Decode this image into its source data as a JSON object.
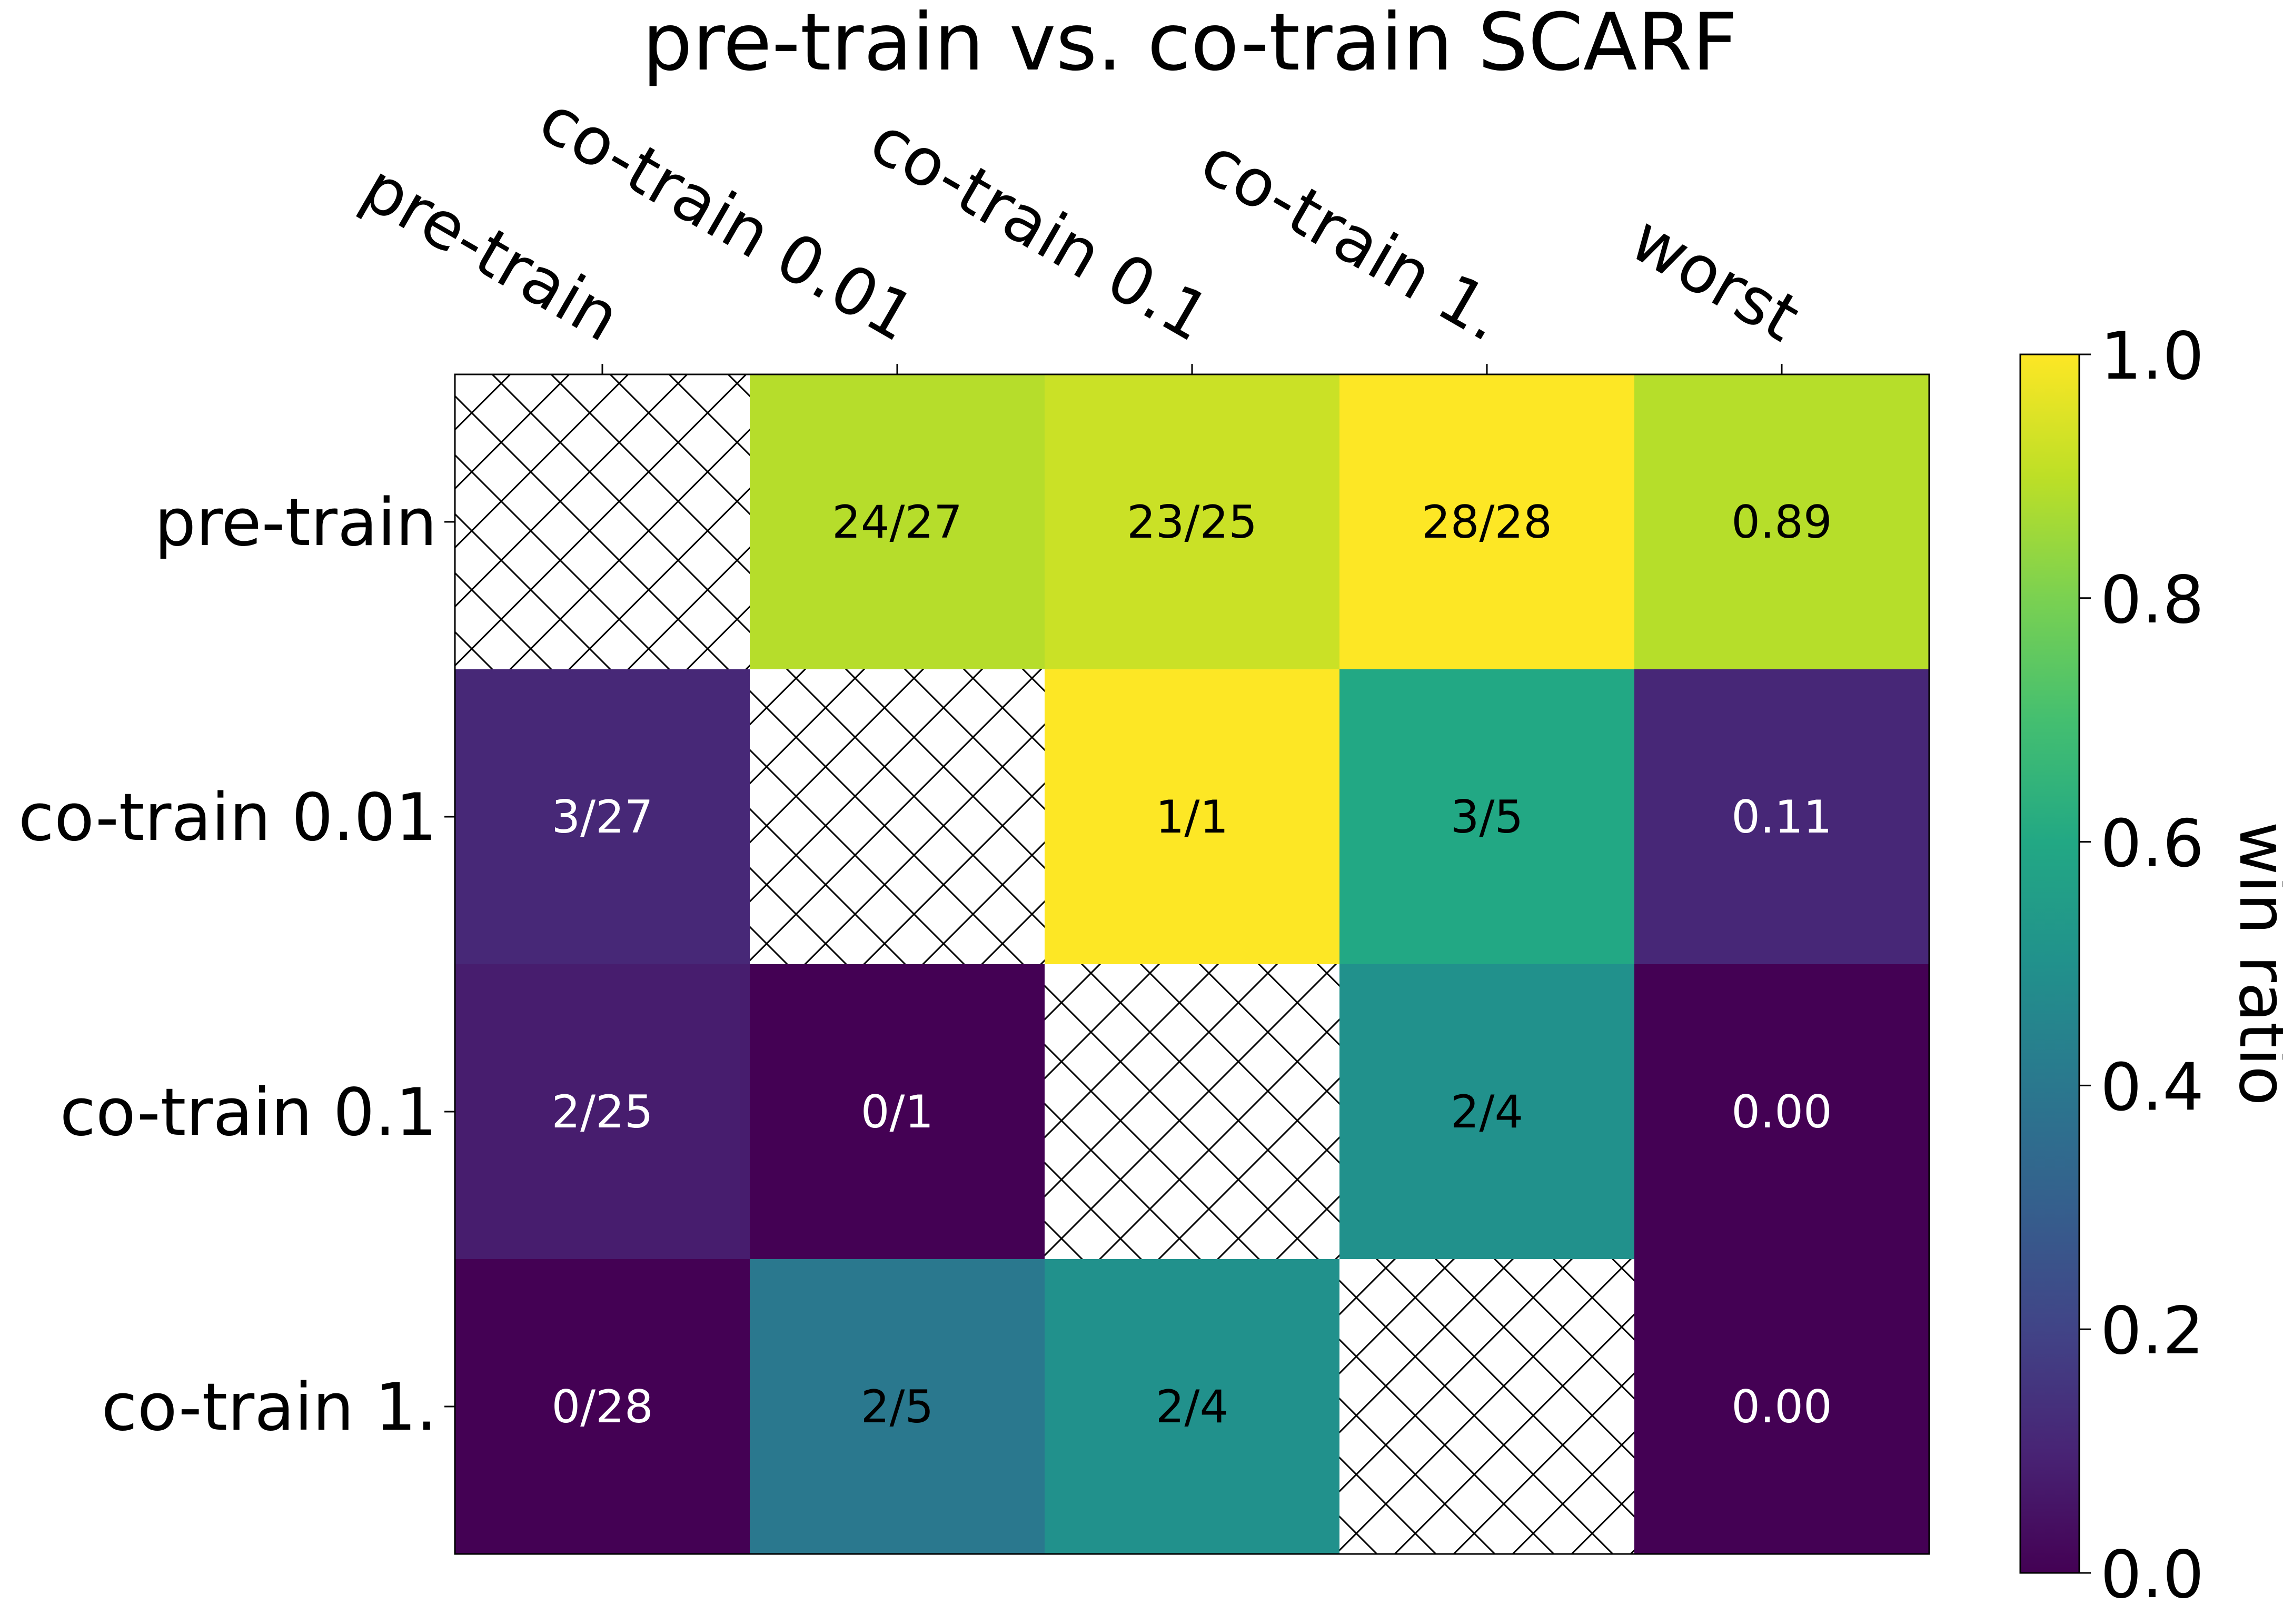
{
  "chart_data": {
    "type": "heatmap",
    "title": "pre-train vs. co-train SCARF",
    "columns": [
      "pre-train",
      "co-train 0.01",
      "co-train 0.1",
      "co-train 1.",
      "worst"
    ],
    "rows": [
      "pre-train",
      "co-train 0.01",
      "co-train 0.1",
      "co-train 1."
    ],
    "values": [
      [
        null,
        0.889,
        0.92,
        1.0,
        0.89
      ],
      [
        0.111,
        null,
        1.0,
        0.6,
        0.11
      ],
      [
        0.08,
        0.0,
        null,
        0.5,
        0.0
      ],
      [
        0.0,
        0.4,
        0.5,
        null,
        0.0
      ]
    ],
    "labels": [
      [
        "",
        "24/27",
        "23/25",
        "28/28",
        "0.89"
      ],
      [
        "3/27",
        "",
        "1/1",
        "3/5",
        "0.11"
      ],
      [
        "2/25",
        "0/1",
        "",
        "2/4",
        "0.00"
      ],
      [
        "0/28",
        "2/5",
        "2/4",
        "",
        "0.00"
      ]
    ],
    "diagonal": "hatched",
    "colormap": "viridis",
    "colorbar": {
      "label": "win ratio",
      "range": [
        0.0,
        1.0
      ],
      "ticks": [
        "0.0",
        "0.2",
        "0.4",
        "0.6",
        "0.8",
        "1.0"
      ]
    }
  }
}
